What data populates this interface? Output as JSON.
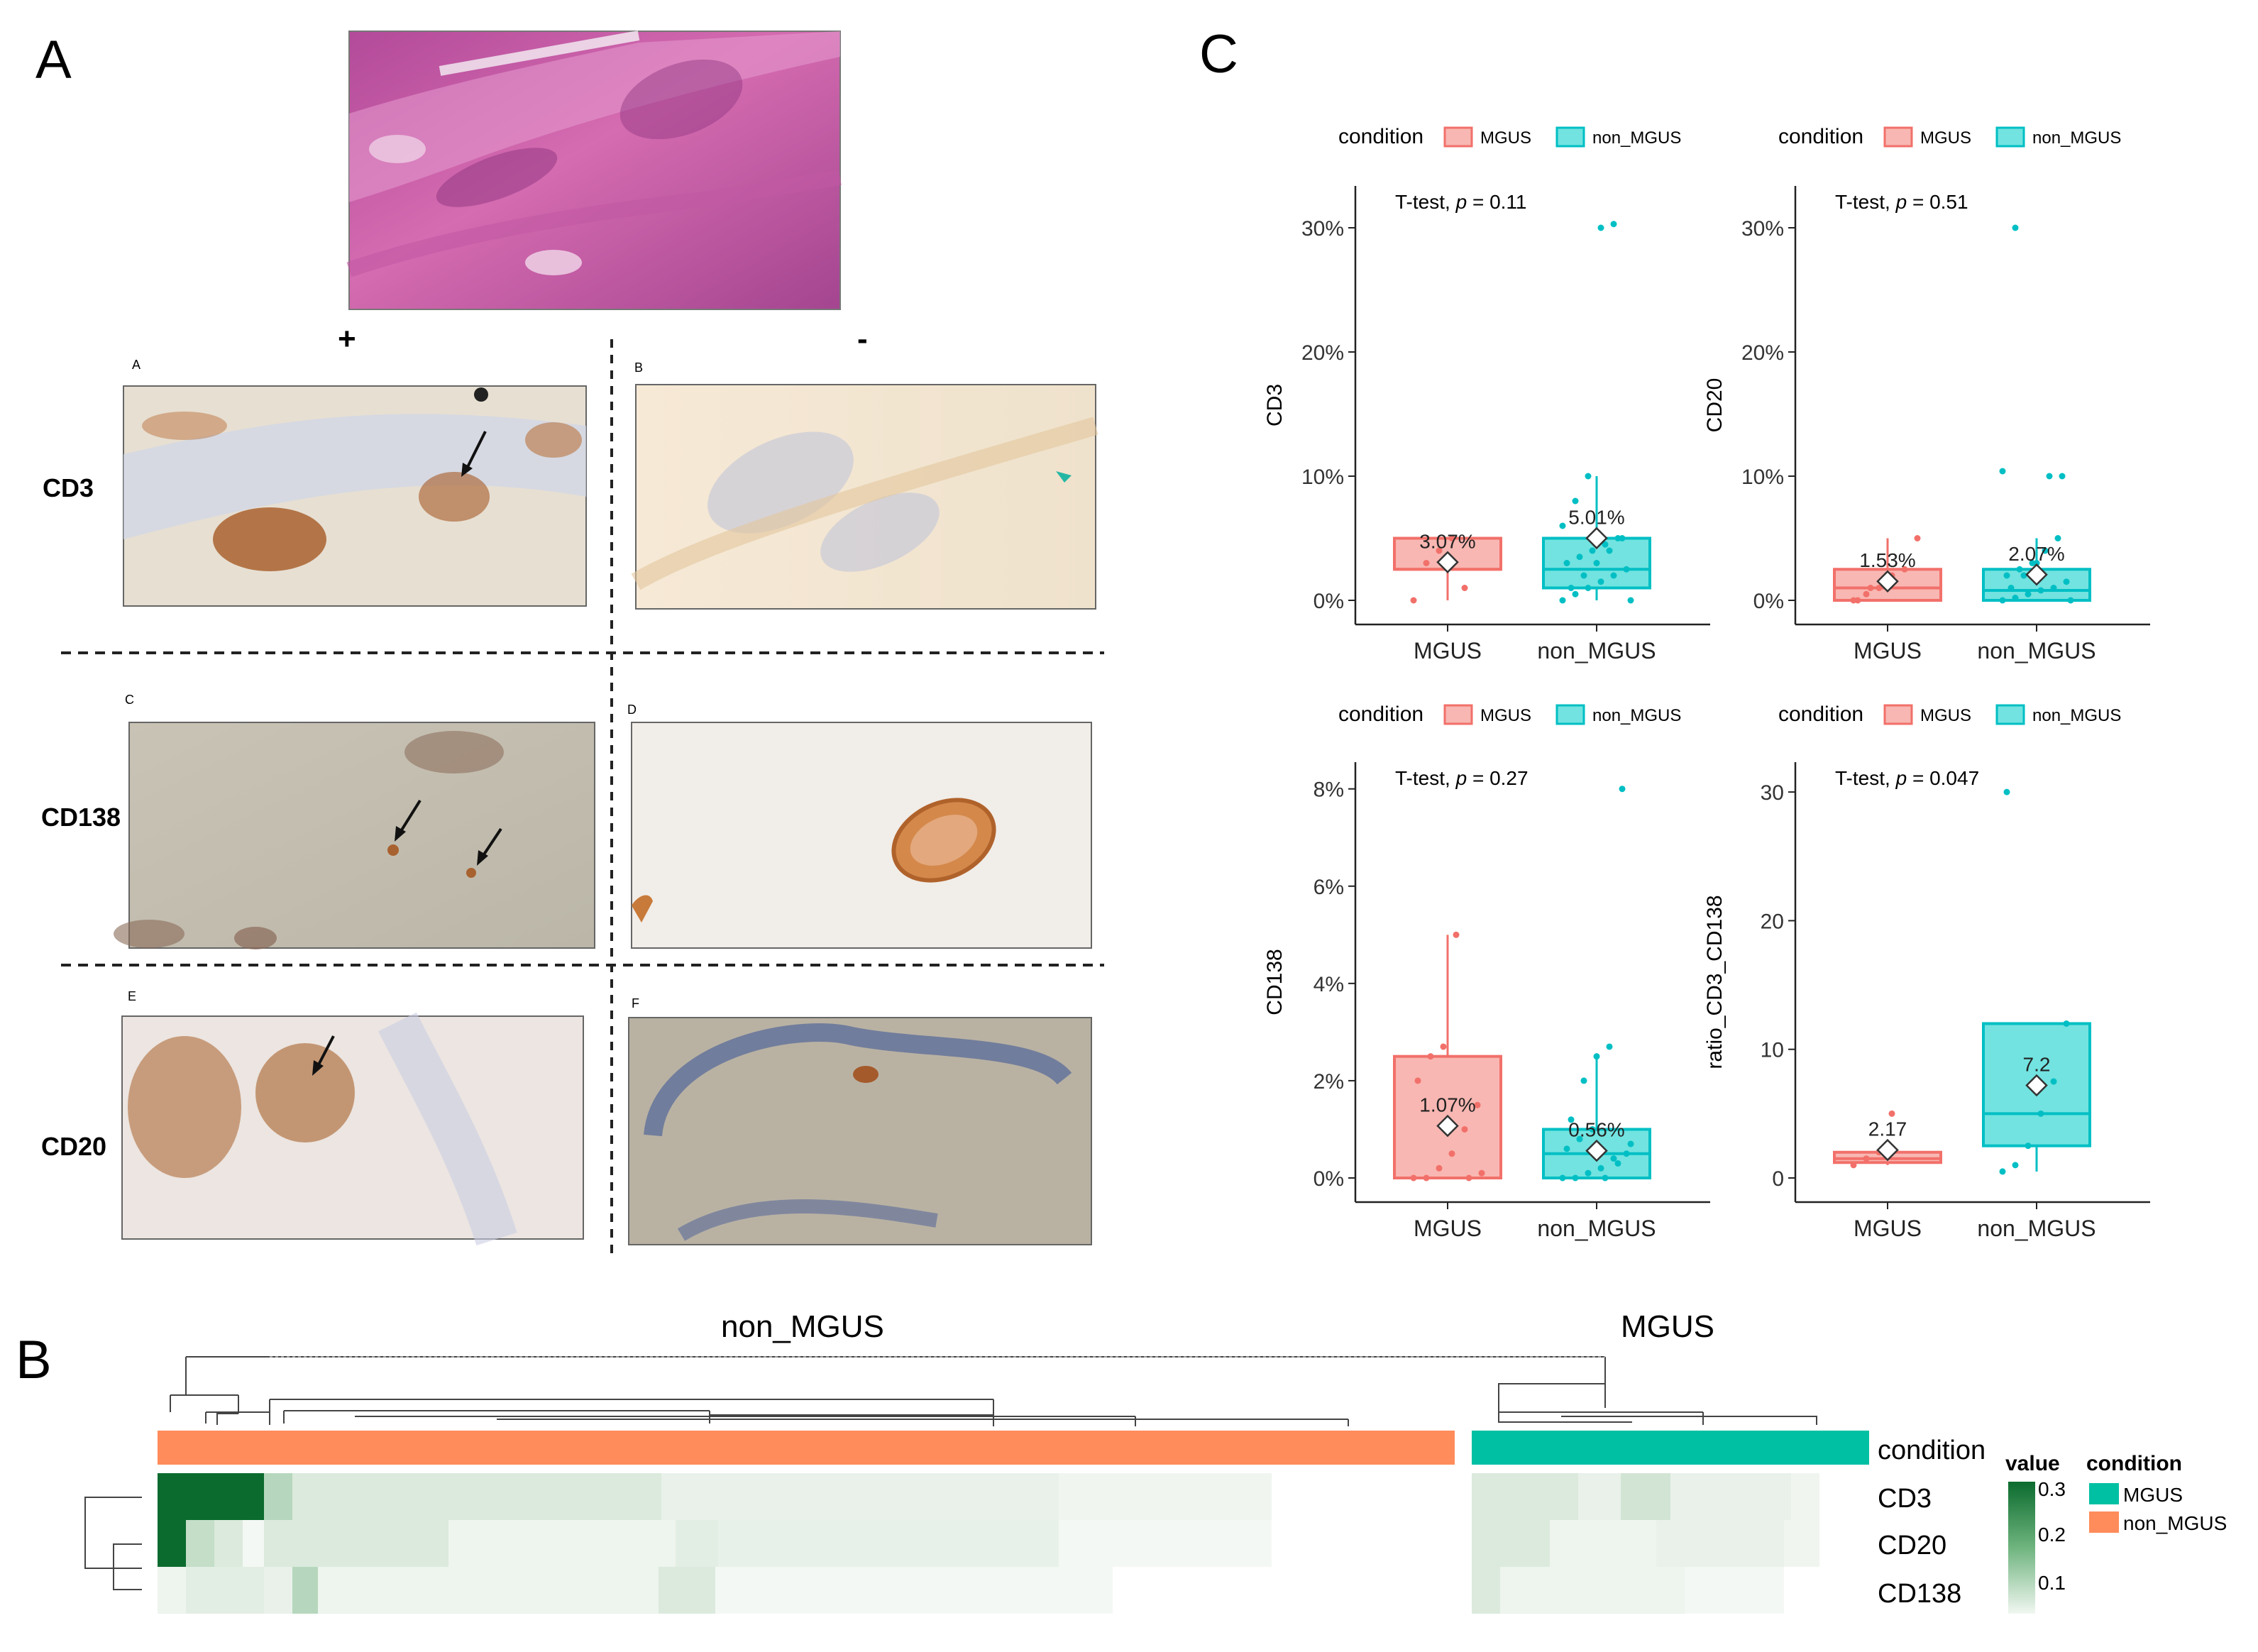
{
  "panels": {
    "a": {
      "label": "A",
      "sign_positive": "+",
      "sign_negative": "-",
      "sub_labels": [
        "A",
        "B",
        "C",
        "D",
        "E",
        "F"
      ],
      "rows": [
        "CD3",
        "CD138",
        "CD20"
      ]
    },
    "b": {
      "label": "B",
      "group_left": "non_MGUS",
      "group_right": "MGUS",
      "row_labels": [
        "condition",
        "CD3",
        "CD20",
        "CD138"
      ],
      "legend": {
        "value_title": "value",
        "value_ticks": [
          "0.3",
          "0.2",
          "0.1"
        ],
        "condition_title": "condition",
        "condition_items": [
          "MGUS",
          "non_MGUS"
        ]
      },
      "colors": {
        "MGUS": "#00c0a3",
        "non_MGUS": "#ff8c5a",
        "high": "#0b6b2e",
        "low": "#f4f8f4"
      }
    },
    "c": {
      "label": "C"
    }
  },
  "chart_data": [
    {
      "type": "box",
      "ylabel": "CD3",
      "categories": [
        "MGUS",
        "non_MGUS"
      ],
      "legend_title": "condition",
      "legend_items": [
        "MGUS",
        "non_MGUS"
      ],
      "test_label": "T-test,",
      "p_label": "p",
      "p_value": "= 0.11",
      "ylim": [
        0,
        0.32
      ],
      "y_ticks": [
        0,
        0.1,
        0.2,
        0.3
      ],
      "y_tick_labels": [
        "0%",
        "10%",
        "20%",
        "30%"
      ],
      "boxes": [
        {
          "q1": 0.025,
          "median": 0.025,
          "q3": 0.05,
          "wlo": 0.0,
          "whi": 0.05,
          "mean": 0.0307,
          "mean_label": "3.07%"
        },
        {
          "q1": 0.01,
          "median": 0.025,
          "q3": 0.05,
          "wlo": 0.0,
          "whi": 0.1,
          "mean": 0.0501,
          "mean_label": "5.01%"
        }
      ],
      "points": [
        [
          0.0,
          0.03,
          0.04,
          0.05,
          0.01
        ],
        [
          0.0,
          0.005,
          0.01,
          0.015,
          0.02,
          0.025,
          0.03,
          0.035,
          0.04,
          0.045,
          0.05,
          0.0,
          0.01,
          0.02,
          0.03,
          0.04,
          0.05,
          0.06,
          0.08,
          0.1,
          0.3,
          0.303
        ]
      ]
    },
    {
      "type": "box",
      "ylabel": "CD20",
      "categories": [
        "MGUS",
        "non_MGUS"
      ],
      "legend_title": "condition",
      "legend_items": [
        "MGUS",
        "non_MGUS"
      ],
      "test_label": "T-test,",
      "p_label": "p",
      "p_value": "= 0.51",
      "ylim": [
        0,
        0.32
      ],
      "y_ticks": [
        0,
        0.1,
        0.2,
        0.3
      ],
      "y_tick_labels": [
        "0%",
        "10%",
        "20%",
        "30%"
      ],
      "boxes": [
        {
          "q1": 0.0,
          "median": 0.01,
          "q3": 0.025,
          "wlo": 0.0,
          "whi": 0.05,
          "mean": 0.0153,
          "mean_label": "1.53%"
        },
        {
          "q1": 0.0,
          "median": 0.008,
          "q3": 0.025,
          "wlo": 0.0,
          "whi": 0.05,
          "mean": 0.0207,
          "mean_label": "2.07%"
        }
      ],
      "points": [
        [
          0.0,
          0.005,
          0.01,
          0.02,
          0.025,
          0.05,
          0.0,
          0.01
        ],
        [
          0.0,
          0.002,
          0.005,
          0.008,
          0.01,
          0.015,
          0.02,
          0.025,
          0.03,
          0.04,
          0.05,
          0.0,
          0.01,
          0.02,
          0.03,
          0.1,
          0.1,
          0.104,
          0.3
        ]
      ]
    },
    {
      "type": "box",
      "ylabel": "CD138",
      "categories": [
        "MGUS",
        "non_MGUS"
      ],
      "legend_title": "condition",
      "legend_items": [
        "MGUS",
        "non_MGUS"
      ],
      "test_label": "T-test,",
      "p_label": "p",
      "p_value": "= 0.27",
      "ylim": [
        0,
        0.082
      ],
      "y_ticks": [
        0,
        0.02,
        0.04,
        0.06,
        0.08
      ],
      "y_tick_labels": [
        "0%",
        "2%",
        "4%",
        "6%",
        "8%"
      ],
      "boxes": [
        {
          "q1": 0.0,
          "median": 0.0,
          "q3": 0.025,
          "wlo": 0.0,
          "whi": 0.05,
          "mean": 0.0107,
          "mean_label": "1.07%"
        },
        {
          "q1": 0.0,
          "median": 0.005,
          "q3": 0.01,
          "wlo": 0.0,
          "whi": 0.025,
          "mean": 0.0056,
          "mean_label": "0.56%"
        }
      ],
      "points": [
        [
          0.0,
          0.0,
          0.002,
          0.005,
          0.01,
          0.015,
          0.02,
          0.025,
          0.027,
          0.05,
          0.0,
          0.001
        ],
        [
          0.0,
          0.0,
          0.001,
          0.002,
          0.004,
          0.005,
          0.006,
          0.008,
          0.01,
          0.0,
          0.003,
          0.007,
          0.012,
          0.02,
          0.025,
          0.027,
          0.08
        ]
      ]
    },
    {
      "type": "box",
      "ylabel": "ratio_CD3_CD138",
      "categories": [
        "MGUS",
        "non_MGUS"
      ],
      "legend_title": "condition",
      "legend_items": [
        "MGUS",
        "non_MGUS"
      ],
      "test_label": "T-test,",
      "p_label": "p",
      "p_value": "= 0.047",
      "ylim": [
        0,
        31
      ],
      "y_ticks": [
        0,
        10,
        20,
        30
      ],
      "y_tick_labels": [
        "0",
        "10",
        "20",
        "30"
      ],
      "boxes": [
        {
          "q1": 1.2,
          "median": 1.5,
          "q3": 2.0,
          "wlo": 1.0,
          "whi": 2.5,
          "mean": 2.17,
          "mean_label": "2.17"
        },
        {
          "q1": 2.5,
          "median": 5.0,
          "q3": 12.0,
          "wlo": 0.5,
          "whi": 12.0,
          "mean": 7.2,
          "mean_label": "7.2"
        }
      ],
      "points": [
        [
          1.0,
          1.5,
          2.0,
          5.0
        ],
        [
          0.5,
          1.0,
          2.5,
          5.0,
          7.5,
          12.0,
          30.0
        ]
      ]
    }
  ]
}
